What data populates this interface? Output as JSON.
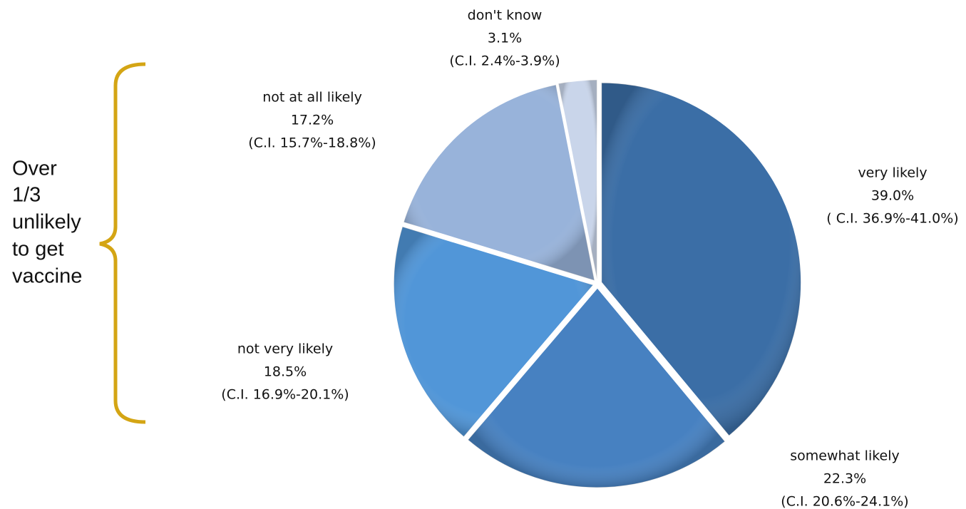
{
  "chart_data": {
    "type": "pie",
    "categories": [
      "very likely",
      "somewhat likely",
      "not very likely",
      "not at all likely",
      "don't know"
    ],
    "values": [
      39.0,
      22.3,
      18.5,
      17.2,
      3.1
    ],
    "value_labels": [
      "39.0%",
      "22.3%",
      "18.5%",
      "17.2%",
      "3.1%"
    ],
    "ci_labels": [
      "( C.I. 36.9%-41.0%)",
      "(C.I. 20.6%-24.1%)",
      "(C.I. 16.9%-20.1%)",
      "(C.I. 15.7%-18.8%)",
      "(C.I. 2.4%-3.9%)"
    ],
    "colors": [
      "#3b6ea6",
      "#4781c1",
      "#5196d8",
      "#98b3da",
      "#c9d5ea"
    ],
    "annotation": [
      "Over",
      "1/3",
      "unlikely",
      "to get",
      "vaccine"
    ],
    "annotation_color": "#d4a514"
  }
}
